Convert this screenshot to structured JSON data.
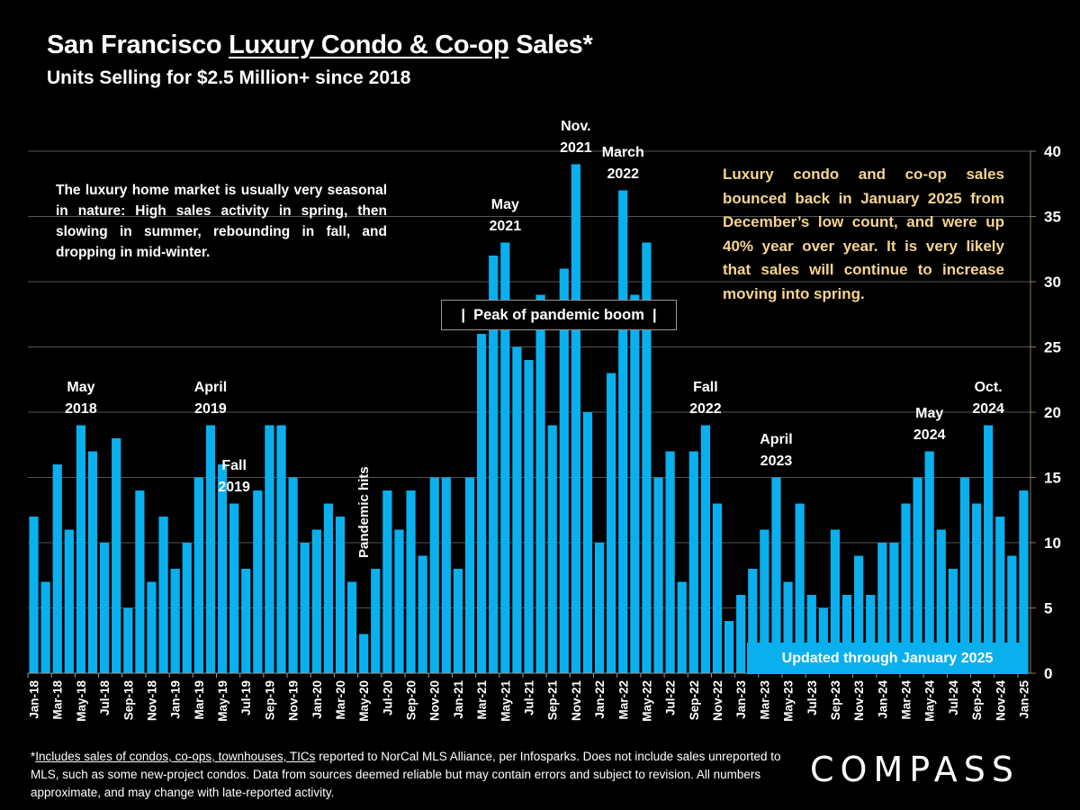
{
  "title": {
    "prefix": "San Francisco ",
    "underlined": "Luxury Condo & Co-op",
    "suffix": " Sales*",
    "subtitle": "Units Selling for $2.5 Million+ since 2018"
  },
  "notes": {
    "left": "The luxury home market is usually very seasonal in nature:  High sales activity in spring, then slowing in summer, rebounding in fall, and dropping in mid-winter.",
    "right": "Luxury condo and co-op sales bounced back in January 2025 from December’s low count, and were up 40% year over year. It is very likely that sales will continue to  increase moving into spring.",
    "peak_box": "|  Peak of pandemic boom  |",
    "updated_badge": "Updated through January 2025",
    "pandemic": "Pandemic hits"
  },
  "annotations": [
    {
      "text": "May\n2018",
      "month_index": 4
    },
    {
      "text": "April\n2019",
      "month_index": 15
    },
    {
      "text": "Fall\n2019",
      "month_index": 17
    },
    {
      "text": "May\n2021",
      "month_index": 40
    },
    {
      "text": "Nov.\n2021",
      "month_index": 46
    },
    {
      "text": "March\n2022",
      "month_index": 50
    },
    {
      "text": "Fall\n2022",
      "month_index": 57
    },
    {
      "text": "April\n2023",
      "month_index": 63
    },
    {
      "text": "May\n2024",
      "month_index": 76
    },
    {
      "text": "Oct.\n2024",
      "month_index": 81
    }
  ],
  "footer": {
    "asterisk": "*",
    "underlined": "Includes sales of condos, co-ops, townhouses, TICs",
    "rest": " reported to NorCal MLS Alliance, per Infosparks. Does not include sales unreported to MLS, such as some new-project condos. Data from sources deemed reliable but may contain errors and subject to revision.  All numbers approximate, and may change with late-reported activity.",
    "logo": "COMPASS"
  },
  "colors": {
    "bar": "#0ab0ee",
    "note_right": "#f5d58e",
    "background": "#000000"
  },
  "chart_data": {
    "type": "bar",
    "title": "San Francisco Luxury Condo & Co-op Sales*",
    "subtitle": "Units Selling for $2.5 Million+ since 2018",
    "xlabel": "",
    "ylabel": "",
    "ylim": [
      0,
      40
    ],
    "yticks": [
      0,
      5,
      10,
      15,
      20,
      25,
      30,
      35,
      40
    ],
    "y_axis_side": "right",
    "grid": true,
    "categories": [
      "Jan-18",
      "Feb-18",
      "Mar-18",
      "Apr-18",
      "May-18",
      "Jun-18",
      "Jul-18",
      "Aug-18",
      "Sep-18",
      "Oct-18",
      "Nov-18",
      "Dec-18",
      "Jan-19",
      "Feb-19",
      "Mar-19",
      "Apr-19",
      "May-19",
      "Jun-19",
      "Jul-19",
      "Aug-19",
      "Sep-19",
      "Oct-19",
      "Nov-19",
      "Dec-19",
      "Jan-20",
      "Feb-20",
      "Mar-20",
      "Apr-20",
      "May-20",
      "Jun-20",
      "Jul-20",
      "Aug-20",
      "Sep-20",
      "Oct-20",
      "Nov-20",
      "Dec-20",
      "Jan-21",
      "Feb-21",
      "Mar-21",
      "Apr-21",
      "May-21",
      "Jun-21",
      "Jul-21",
      "Aug-21",
      "Sep-21",
      "Oct-21",
      "Nov-21",
      "Dec-21",
      "Jan-22",
      "Feb-22",
      "Mar-22",
      "Apr-22",
      "May-22",
      "Jun-22",
      "Jul-22",
      "Aug-22",
      "Sep-22",
      "Oct-22",
      "Nov-22",
      "Dec-22",
      "Jan-23",
      "Feb-23",
      "Mar-23",
      "Apr-23",
      "May-23",
      "Jun-23",
      "Jul-23",
      "Aug-23",
      "Sep-23",
      "Oct-23",
      "Nov-23",
      "Dec-23",
      "Jan-24",
      "Feb-24",
      "Mar-24",
      "Apr-24",
      "May-24",
      "Jun-24",
      "Jul-24",
      "Aug-24",
      "Sep-24",
      "Oct-24",
      "Nov-24",
      "Dec-24",
      "Jan-25"
    ],
    "values": [
      12,
      7,
      16,
      11,
      19,
      17,
      10,
      18,
      5,
      14,
      7,
      12,
      8,
      10,
      15,
      19,
      16,
      13,
      8,
      14,
      19,
      19,
      15,
      10,
      11,
      13,
      12,
      7,
      3,
      8,
      14,
      11,
      14,
      9,
      15,
      15,
      8,
      15,
      26,
      32,
      33,
      25,
      24,
      29,
      19,
      31,
      39,
      20,
      10,
      23,
      37,
      29,
      33,
      15,
      17,
      7,
      17,
      19,
      13,
      4,
      6,
      8,
      11,
      15,
      7,
      13,
      6,
      5,
      11,
      6,
      9,
      6,
      10,
      10,
      13,
      15,
      17,
      11,
      8,
      15,
      13,
      19,
      12,
      9,
      14
    ],
    "tick_label_every": 2
  }
}
